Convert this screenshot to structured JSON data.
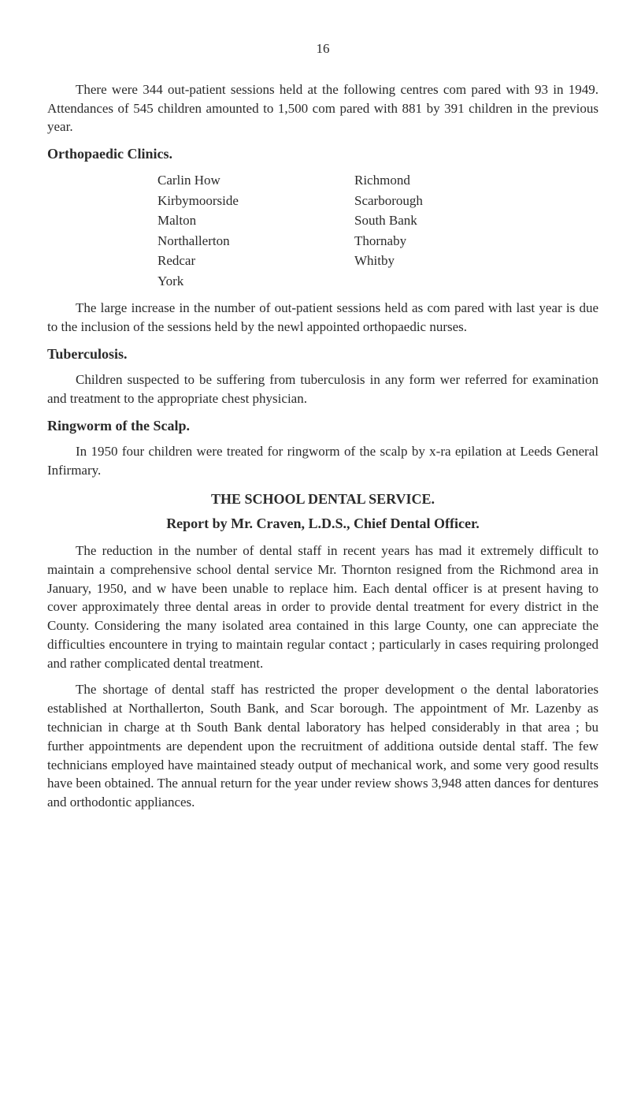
{
  "page_number": "16",
  "paragraphs": {
    "p1": "There were 344 out-patient sessions held at the following centres com pared with 93 in 1949. Attendances of 545 children amounted to 1,500 com pared with 881 by 391 children in the previous year.",
    "p2": "The large increase in the number of out-patient sessions held as com pared with last year is due to the inclusion of the sessions held by the newl appointed orthopaedic nurses.",
    "p3": "Children suspected to be suffering from tuberculosis in any form wer referred for examination and treatment to the appropriate chest physician.",
    "p4": "In 1950 four children were treated for ringworm of the scalp by x-ra epilation at Leeds General Infirmary.",
    "p5": "The reduction in the number of dental staff in recent years has mad it extremely difficult to maintain a comprehensive school dental service Mr. Thornton resigned from the Richmond area in January, 1950, and w have been unable to replace him. Each dental officer is at present having to cover approximately three dental areas in order to provide dental treat­ment for every district in the County. Considering the many isolated area contained in this large County, one can appreciate the difficulties encountere in trying to maintain regular contact ; particularly in cases requiring pro­longed and rather complicated dental treatment.",
    "p6": "The shortage of dental staff has restricted the proper development o the dental laboratories established at Northallerton, South Bank, and Scar borough. The appointment of Mr. Lazenby as technician in charge at th South Bank dental laboratory has helped considerably in that area ; bu further appointments are dependent upon the recruitment of additiona outside dental staff. The few technicians employed have maintained steady output of mechanical work, and some very good results have been obtained. The annual return for the year under review shows 3,948 atten dances for dentures and orthodontic appliances."
  },
  "headings": {
    "orthopaedic": "Orthopaedic Clinics.",
    "tuberculosis": "Tuberculosis.",
    "ringworm": "Ringworm of the Scalp.",
    "dental_title": "THE SCHOOL DENTAL SERVICE.",
    "dental_subtitle": "Report by Mr. Craven, L.D.S., Chief Dental Officer."
  },
  "clinics": {
    "left": [
      "Carlin How",
      "Kirbymoorside",
      "Malton",
      "Northallerton",
      "Redcar",
      "York"
    ],
    "right": [
      "Richmond",
      "Scarborough",
      "South Bank",
      "Thornaby",
      "Whitby"
    ]
  }
}
